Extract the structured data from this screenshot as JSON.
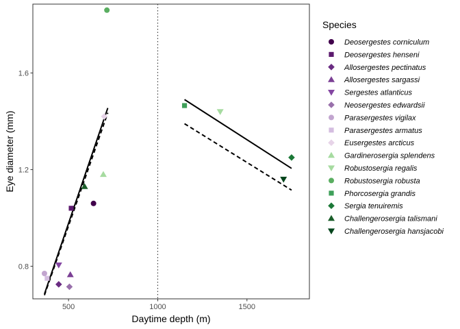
{
  "chart_data": {
    "type": "scatter",
    "xlabel": "Daytime depth (m)",
    "ylabel": "Eye diameter (mm)",
    "xlim": [
      300,
      1850
    ],
    "ylim": [
      0.665,
      1.885
    ],
    "x_ticks": [
      500,
      1000,
      1500
    ],
    "y_ticks": [
      0.8,
      1.2,
      1.6
    ],
    "x_tick_labels": [
      "500",
      "1000",
      "1500"
    ],
    "y_tick_labels": [
      "0.8",
      "1.2",
      "1.6"
    ],
    "grid": false,
    "legend_position": "right",
    "legend_title": "Species",
    "reference_line": {
      "x": 1000,
      "style": "dotted"
    },
    "series": [
      {
        "name": "Deosergestes corniculum",
        "color": "#40004b",
        "shape": "circle",
        "points": [
          [
            640,
            1.06
          ]
        ]
      },
      {
        "name": "Deosergestes henseni",
        "color": "#5c1a6e",
        "shape": "square",
        "points": [
          [
            515,
            1.04
          ]
        ]
      },
      {
        "name": "Allosergestes pectinatus",
        "color": "#6a2c82",
        "shape": "diamond",
        "points": [
          [
            445,
            0.725
          ]
        ]
      },
      {
        "name": "Allosergestes sargassi",
        "color": "#7b3f94",
        "shape": "triangle-up",
        "points": [
          [
            510,
            0.765
          ]
        ]
      },
      {
        "name": "Sergestes atlanticus",
        "color": "#8446a2",
        "shape": "triangle-down",
        "points": [
          [
            445,
            0.805
          ]
        ]
      },
      {
        "name": "Neosergestes edwardsii",
        "color": "#9970ab",
        "shape": "diamond",
        "points": [
          [
            505,
            0.715
          ]
        ]
      },
      {
        "name": "Parasergestes vigilax",
        "color": "#c2a5cf",
        "shape": "circle",
        "points": [
          [
            365,
            0.77
          ]
        ]
      },
      {
        "name": "Parasergestes armatus",
        "color": "#d4bde0",
        "shape": "square",
        "points": [
          [
            380,
            0.75
          ]
        ]
      },
      {
        "name": "Eusergestes arcticus",
        "color": "#e7d4e8",
        "shape": "diamond",
        "points": [
          [
            700,
            1.42
          ]
        ]
      },
      {
        "name": "Gardinerosergia splendens",
        "color": "#a6dba0",
        "shape": "triangle-up",
        "points": [
          [
            695,
            1.18
          ]
        ]
      },
      {
        "name": "Robustosergia regalis",
        "color": "#a6dba0",
        "shape": "triangle-down",
        "points": [
          [
            1350,
            1.44
          ]
        ]
      },
      {
        "name": "Robustosergia robusta",
        "color": "#5aae61",
        "shape": "circle",
        "points": [
          [
            715,
            1.86
          ]
        ]
      },
      {
        "name": "Phorcosergia grandis",
        "color": "#3fa05a",
        "shape": "square",
        "points": [
          [
            1150,
            1.465
          ]
        ]
      },
      {
        "name": "Sergia tenuiremis",
        "color": "#1b7837",
        "shape": "diamond",
        "points": [
          [
            1750,
            1.25
          ]
        ]
      },
      {
        "name": "Challengerosergia talismani",
        "color": "#1b5e2a",
        "shape": "triangle-up",
        "points": [
          [
            590,
            1.13
          ]
        ]
      },
      {
        "name": "Challengerosergia hansjacobi",
        "color": "#00441b",
        "shape": "triangle-down",
        "points": [
          [
            1705,
            1.16
          ]
        ]
      }
    ],
    "fit_lines": [
      {
        "style": "solid",
        "from": [
          365,
          0.685
        ],
        "to": [
          720,
          1.455
        ]
      },
      {
        "style": "dashed",
        "from": [
          365,
          0.68
        ],
        "to": [
          720,
          1.435
        ]
      },
      {
        "style": "solid",
        "from": [
          1150,
          1.49
        ],
        "to": [
          1750,
          1.205
        ]
      },
      {
        "style": "dashed",
        "from": [
          1150,
          1.39
        ],
        "to": [
          1750,
          1.115
        ]
      }
    ]
  }
}
